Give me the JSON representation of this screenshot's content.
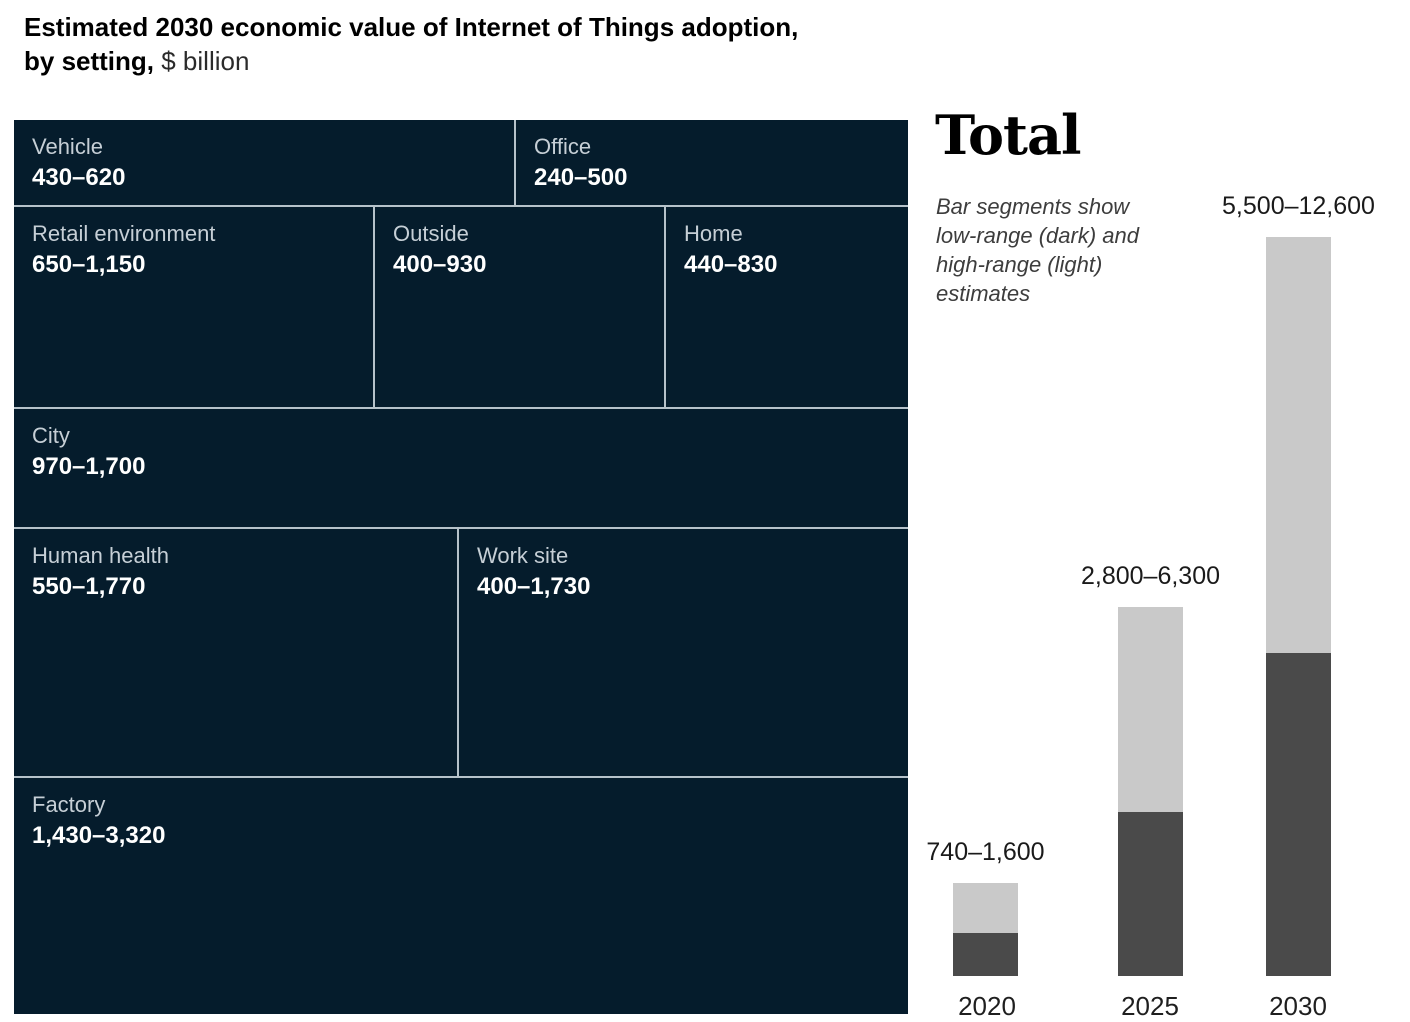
{
  "header": {
    "line1": "Estimated 2030 economic value of Internet of Things adoption,",
    "line2_bold": "by setting,",
    "line2_unit": "$ billion"
  },
  "total_panel": {
    "heading": "Total",
    "legend_lines": {
      "l1": "Bar segments show",
      "l2": "low-range (dark) and",
      "l3": "high-range (light)",
      "l4": "estimates"
    }
  },
  "colors": {
    "treemap_cell_bg": "#051c2c",
    "treemap_divider": "#b6c2ca",
    "treemap_name_text": "#c6cfd6",
    "treemap_value_text": "#ffffff",
    "bar_low_dark": "#4a4a4a",
    "bar_high_light": "#c9c9c9"
  },
  "chart_data": [
    {
      "type": "treemap",
      "title": "Estimated 2030 economic value of Internet of Things adoption, by setting, $ billion",
      "items": [
        {
          "label": "Vehicle",
          "range": "430–620",
          "low": 430,
          "high": 620
        },
        {
          "label": "Office",
          "range": "240–500",
          "low": 240,
          "high": 500
        },
        {
          "label": "Retail environment",
          "range": "650–1,150",
          "low": 650,
          "high": 1150
        },
        {
          "label": "Outside",
          "range": "400–930",
          "low": 400,
          "high": 930
        },
        {
          "label": "Home",
          "range": "440–830",
          "low": 440,
          "high": 830
        },
        {
          "label": "City",
          "range": "970–1,700",
          "low": 970,
          "high": 1700
        },
        {
          "label": "Human health",
          "range": "550–1,770",
          "low": 550,
          "high": 1770
        },
        {
          "label": "Work site",
          "range": "400–1,730",
          "low": 400,
          "high": 1730
        },
        {
          "label": "Factory",
          "range": "1,430–3,320",
          "low": 1430,
          "high": 3320
        }
      ]
    },
    {
      "type": "bar",
      "title": "Total",
      "subtitle": "Bar segments show low-range (dark) and high-range (light) estimates",
      "categories": [
        "2020",
        "2025",
        "2030"
      ],
      "series": [
        {
          "name": "low-range (dark)",
          "values": [
            740,
            2800,
            5500
          ],
          "color": "#4a4a4a"
        },
        {
          "name": "high-range (light)",
          "values": [
            1600,
            6300,
            12600
          ],
          "color": "#c9c9c9"
        }
      ],
      "bar_labels": [
        "740–1,600",
        "2,800–6,300",
        "5,500–12,600"
      ],
      "ylim": [
        0,
        12600
      ],
      "grid": false,
      "legend_position": "left-of-chart"
    }
  ]
}
